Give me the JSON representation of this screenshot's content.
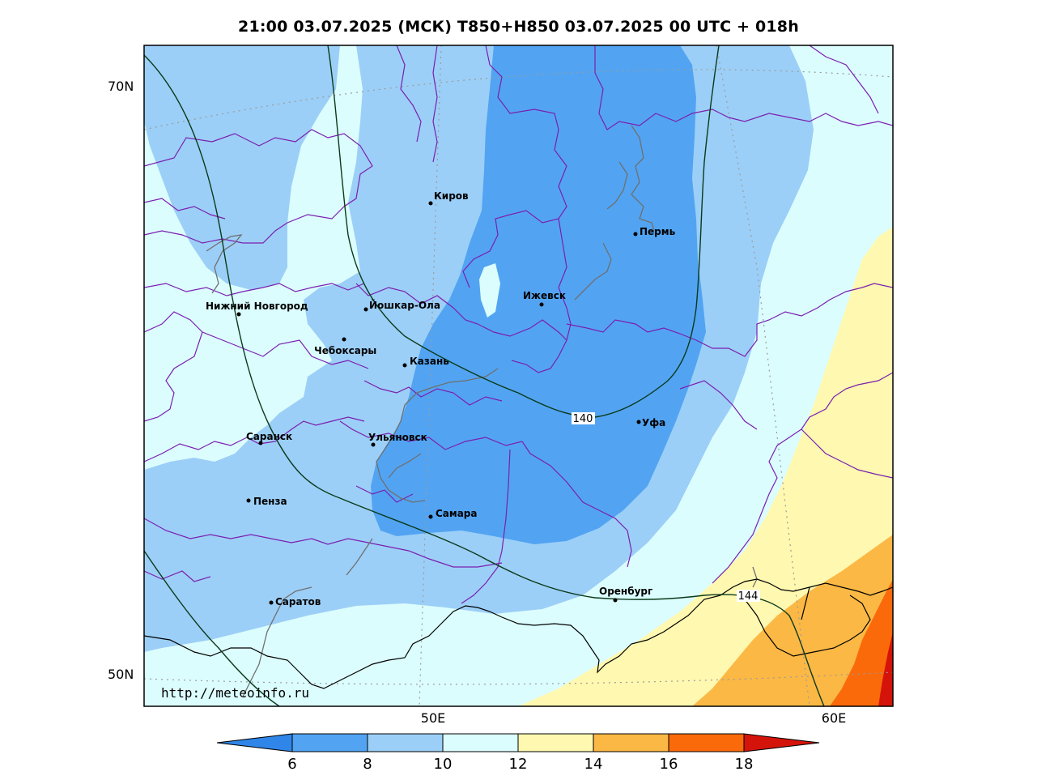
{
  "title": "21:00 03.07.2025 (МСК) T850+H850 03.07.2025 00 UTC + 018h",
  "source_url": "http://meteoinfo.ru",
  "lat_labels": [
    "70N",
    "50N"
  ],
  "lon_labels": [
    "50E",
    "60E"
  ],
  "cities": [
    "Киров",
    "Пермь",
    "Нижний Новгород",
    "Йошкар-Ола",
    "Ижевск",
    "Чебоксары",
    "Казань",
    "Уфа",
    "Саранск",
    "Ульяновск",
    "Пенза",
    "Самара",
    "Оренбург",
    "Саратов"
  ],
  "contour_labels": [
    "140",
    "144"
  ],
  "colorbar": {
    "ticks": [
      "6",
      "8",
      "10",
      "12",
      "14",
      "16",
      "18"
    ],
    "colors": [
      "#2f86e8",
      "#52a4f2",
      "#9ccff7",
      "#dcfdfe",
      "#fff8b0",
      "#fcb845",
      "#fa6a0b",
      "#d4140a"
    ]
  },
  "colors": {
    "boundary": "#7a1fb0",
    "contour": "#0a3a1a",
    "river": "#6f6f6f",
    "country_border": "#000000"
  }
}
